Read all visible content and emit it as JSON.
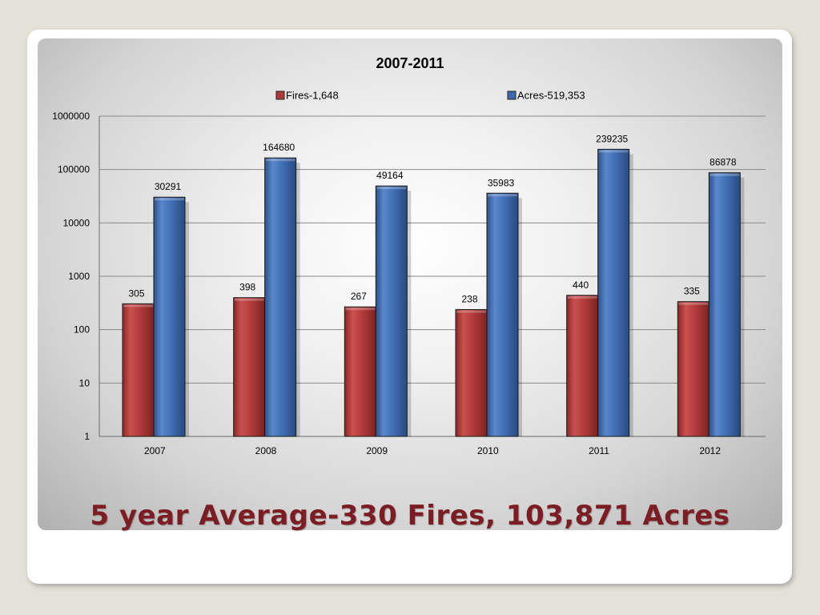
{
  "slide": {
    "caption": "5 year Average-330 Fires, 103,871 Acres"
  },
  "chart_data": {
    "type": "bar",
    "title": "2007-2011",
    "xlabel": "",
    "ylabel": "",
    "yscale": "log",
    "ylim": [
      1,
      1000000
    ],
    "yticks": [
      "1",
      "10",
      "100",
      "1000",
      "10000",
      "100000",
      "1000000"
    ],
    "categories": [
      "2007",
      "2008",
      "2009",
      "2010",
      "2011",
      "2012"
    ],
    "series": [
      {
        "name": "Fires-1,648",
        "color": "#b03a3a",
        "values": [
          305,
          398,
          267,
          238,
          440,
          335
        ]
      },
      {
        "name": "Acres-519,353",
        "color": "#3d6bb0",
        "values": [
          30291,
          164680,
          49164,
          35983,
          239235,
          86878
        ]
      }
    ],
    "grid": true,
    "legend": "top"
  }
}
